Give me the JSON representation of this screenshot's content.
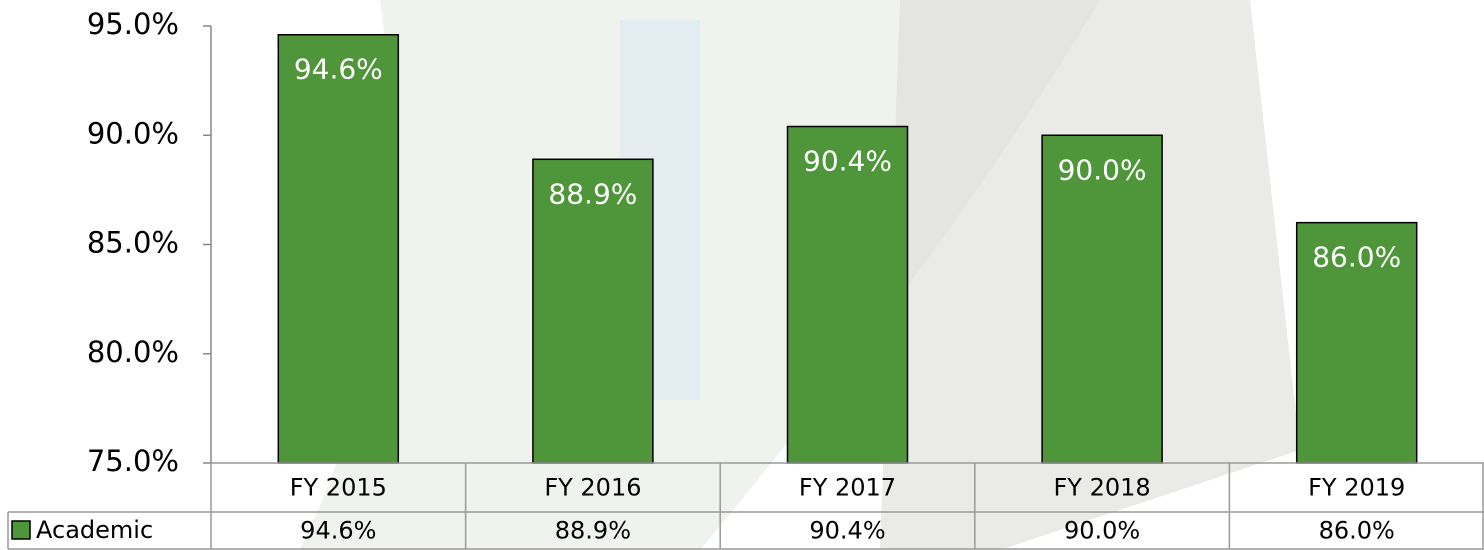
{
  "chart_data": {
    "type": "bar",
    "categories": [
      "FY 2015",
      "FY 2016",
      "FY 2017",
      "FY 2018",
      "FY 2019"
    ],
    "series": [
      {
        "name": "Academic",
        "color": "#4f963a",
        "values": [
          94.6,
          88.9,
          90.4,
          90.0,
          86.0
        ],
        "value_labels": [
          "94.6%",
          "88.9%",
          "90.4%",
          "90.0%",
          "86.0%"
        ]
      }
    ],
    "ylim": [
      75,
      95
    ],
    "yticks": [
      {
        "value": 75,
        "label": "75.0%"
      },
      {
        "value": 80,
        "label": "80.0%"
      },
      {
        "value": 85,
        "label": "85.0%"
      },
      {
        "value": 90,
        "label": "90.0%"
      },
      {
        "value": 95,
        "label": "95.0%"
      }
    ],
    "data_table": true
  }
}
